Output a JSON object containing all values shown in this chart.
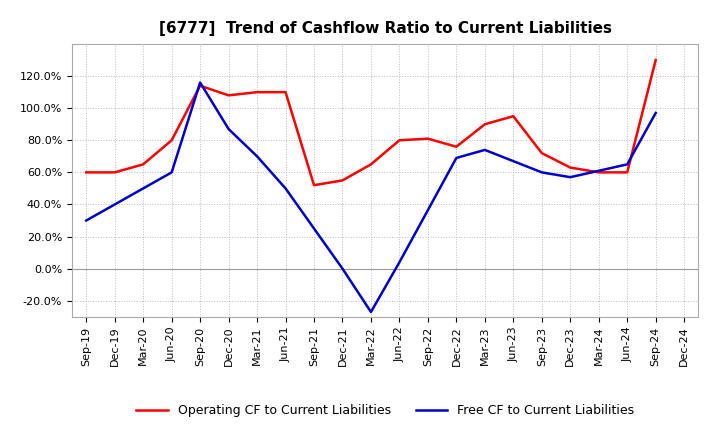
{
  "title": "[6777]  Trend of Cashflow Ratio to Current Liabilities",
  "x_labels": [
    "Sep-19",
    "Dec-19",
    "Mar-20",
    "Jun-20",
    "Sep-20",
    "Dec-20",
    "Mar-21",
    "Jun-21",
    "Sep-21",
    "Dec-21",
    "Mar-22",
    "Jun-22",
    "Sep-22",
    "Dec-22",
    "Mar-23",
    "Jun-23",
    "Sep-23",
    "Dec-23",
    "Mar-24",
    "Jun-24",
    "Sep-24",
    "Dec-24"
  ],
  "operating_cf_x": [
    0,
    1,
    2,
    3,
    4,
    5,
    6,
    7,
    8,
    9,
    10,
    11,
    12,
    13,
    14,
    15,
    16,
    17,
    18,
    19,
    20
  ],
  "operating_cf_y": [
    0.6,
    0.6,
    0.65,
    0.8,
    1.14,
    1.08,
    1.1,
    1.1,
    0.52,
    0.55,
    0.65,
    0.8,
    0.81,
    0.76,
    0.9,
    0.95,
    0.72,
    0.63,
    0.6,
    0.6,
    1.3
  ],
  "free_cf_x": [
    0,
    3,
    4,
    5,
    6,
    7,
    8,
    9,
    10,
    11,
    13,
    14,
    16,
    17,
    19,
    20
  ],
  "free_cf_y": [
    0.3,
    0.6,
    1.16,
    0.87,
    0.7,
    0.5,
    0.25,
    0.0,
    -0.27,
    0.04,
    0.69,
    0.74,
    0.6,
    0.57,
    0.65,
    0.97
  ],
  "operating_cf_color": "#ff0000",
  "free_cf_color": "#0000cd",
  "background_color": "#ffffff",
  "plot_bg_color": "#ffffff",
  "grid_color": "#bbbbbb",
  "ylim": [
    -0.3,
    1.4
  ],
  "yticks": [
    -0.2,
    0.0,
    0.2,
    0.4,
    0.6,
    0.8,
    1.0,
    1.2
  ],
  "legend_op": "Operating CF to Current Liabilities",
  "legend_free": "Free CF to Current Liabilities",
  "title_fontsize": 11,
  "tick_fontsize": 8,
  "legend_fontsize": 9
}
